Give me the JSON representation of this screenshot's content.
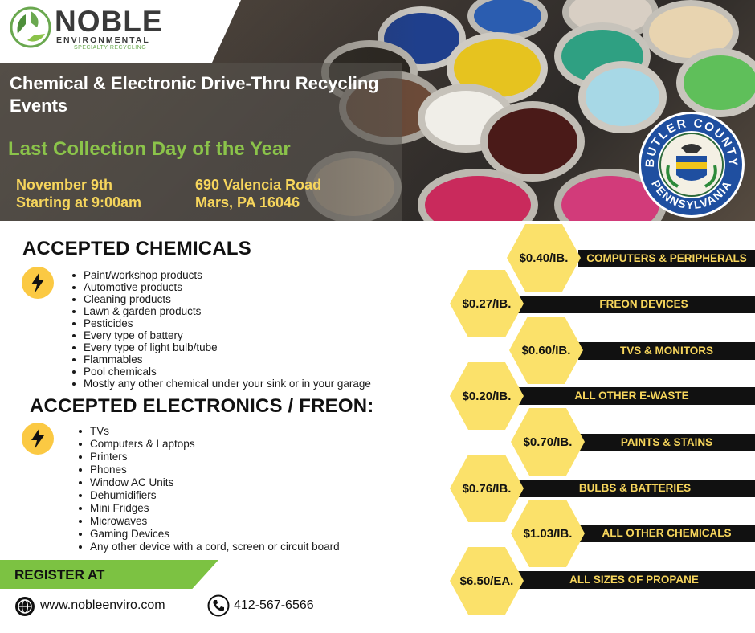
{
  "header": {
    "logo": {
      "name": "NOBLE",
      "line2": "ENVIRONMENTAL",
      "tagline": "SPECIALTY RECYCLING"
    },
    "title": "Chemical & Electronic Drive-Thru Recycling Events",
    "subtitle": "Last Collection Day of the Year",
    "date_line1": "November 9th",
    "date_line2": "Starting at 9:00am",
    "address_line1": "690 Valencia Road",
    "address_line2": "Mars, PA 16046",
    "seal": {
      "top": "BUTLER COUNTY",
      "bottom": "PENNSYLVANIA"
    }
  },
  "chemicals": {
    "heading": "ACCEPTED CHEMICALS",
    "icon": "lightning-bolt-icon",
    "items": [
      "Paint/workshop products",
      "Automotive products",
      "Cleaning products",
      "Lawn & garden products",
      "Pesticides",
      "Every type of battery",
      "Every type of light bulb/tube",
      "Flammables",
      "Pool chemicals",
      "Mostly any other chemical under your sink or in your garage"
    ]
  },
  "electronics": {
    "heading": "ACCEPTED ELECTRONICS / FREON:",
    "icon": "lightning-bolt-icon",
    "items": [
      "TVs",
      "Computers & Laptops",
      "Printers",
      "Phones",
      "Window AC Units",
      "Dehumidifiers",
      "Mini Fridges",
      "Microwaves",
      "Gaming Devices",
      "Any other device with a cord, screen or circuit board"
    ]
  },
  "register": {
    "label": "REGISTER AT",
    "website": "www.nobleenviro.com",
    "phone": "412-567-6566",
    "website_icon": "globe-icon",
    "phone_icon": "phone-icon"
  },
  "prices": [
    {
      "price": "$0.40/IB.",
      "label": "COMPUTERS & PERIPHERALS"
    },
    {
      "price": "$0.27/IB.",
      "label": "FREON DEVICES"
    },
    {
      "price": "$0.60/IB.",
      "label": "TVS & MONITORS"
    },
    {
      "price": "$0.20/IB.",
      "label": "ALL OTHER E-WASTE"
    },
    {
      "price": "$0.70/IB.",
      "label": "PAINTS & STAINS"
    },
    {
      "price": "$0.76/IB.",
      "label": "BULBS & BATTERIES"
    },
    {
      "price": "$1.03/IB.",
      "label": "ALL OTHER CHEMICALS"
    },
    {
      "price": "$6.50/EA.",
      "label": "ALL SIZES OF PROPANE"
    }
  ],
  "colors": {
    "accent_green": "#7cc242",
    "accent_yellow": "#fbe16a",
    "dark": "#111111"
  }
}
